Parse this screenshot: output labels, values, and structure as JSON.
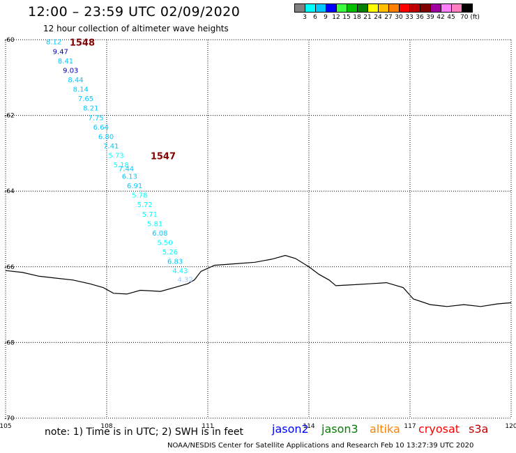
{
  "header": {
    "title": "12:00 – 23:59 UTC 02/09/2020",
    "subtitle": "12 hour collection of altimeter wave heights"
  },
  "legend": {
    "colors": [
      "#808080",
      "#00ffff",
      "#00c8ff",
      "#0000ff",
      "#40ff40",
      "#00c000",
      "#008000",
      "#ffff00",
      "#ffc000",
      "#ff8000",
      "#ff0000",
      "#c00000",
      "#800000",
      "#a000a0",
      "#ff80ff",
      "#ff80c0",
      "#000000"
    ],
    "labels": [
      "3",
      "6",
      "9",
      "12",
      "15",
      "18",
      "21",
      "24",
      "27",
      "30",
      "33",
      "36",
      "39",
      "42",
      "45",
      "70 (ft)"
    ]
  },
  "axes": {
    "x_ticks": [
      "105",
      "108",
      "111",
      "114",
      "117",
      "120"
    ],
    "y_ticks": [
      "-60",
      "-62",
      "-64",
      "-66",
      "-68",
      "-70"
    ]
  },
  "chart_data": {
    "type": "scatter",
    "x_range": [
      105,
      120
    ],
    "y_range": [
      -70,
      -60
    ],
    "track_labels": [
      {
        "label": "1548",
        "lon": 106.9,
        "lat": -60.05
      },
      {
        "label": "1547",
        "lon": 109.3,
        "lat": -63.05
      }
    ],
    "points": [
      {
        "lon": 106.2,
        "lat": -60.05,
        "value": "8.12",
        "color": "#00c8ff"
      },
      {
        "lon": 106.4,
        "lat": -60.3,
        "value": "9.47",
        "color": "#0000c0"
      },
      {
        "lon": 106.55,
        "lat": -60.55,
        "value": "8.41",
        "color": "#00c8ff"
      },
      {
        "lon": 106.7,
        "lat": -60.8,
        "value": "9.03",
        "color": "#0000c0"
      },
      {
        "lon": 106.85,
        "lat": -61.05,
        "value": "8.44",
        "color": "#00c8ff"
      },
      {
        "lon": 107.0,
        "lat": -61.3,
        "value": "8.14",
        "color": "#00c8ff"
      },
      {
        "lon": 107.15,
        "lat": -61.55,
        "value": "7.65",
        "color": "#00c8ff"
      },
      {
        "lon": 107.3,
        "lat": -61.8,
        "value": "8.21",
        "color": "#00c8ff"
      },
      {
        "lon": 107.45,
        "lat": -62.05,
        "value": "7.75",
        "color": "#00c8ff"
      },
      {
        "lon": 107.6,
        "lat": -62.3,
        "value": "6.64",
        "color": "#00c8ff"
      },
      {
        "lon": 107.75,
        "lat": -62.55,
        "value": "6.80",
        "color": "#00c8ff"
      },
      {
        "lon": 107.9,
        "lat": -62.8,
        "value": "7.41",
        "color": "#00c8ff"
      },
      {
        "lon": 108.05,
        "lat": -63.05,
        "value": "5.73",
        "color": "#00ffff"
      },
      {
        "lon": 108.2,
        "lat": -63.3,
        "value": "5.18",
        "color": "#00ffff"
      },
      {
        "lon": 108.35,
        "lat": -63.4,
        "value": "7.44",
        "color": "#00c8ff"
      },
      {
        "lon": 108.45,
        "lat": -63.6,
        "value": "6.13",
        "color": "#00c8ff"
      },
      {
        "lon": 108.6,
        "lat": -63.85,
        "value": "6.91",
        "color": "#00c8ff"
      },
      {
        "lon": 108.75,
        "lat": -64.1,
        "value": "5.78",
        "color": "#00ffff"
      },
      {
        "lon": 108.9,
        "lat": -64.35,
        "value": "5.72",
        "color": "#00ffff"
      },
      {
        "lon": 109.05,
        "lat": -64.6,
        "value": "5.71",
        "color": "#00ffff"
      },
      {
        "lon": 109.2,
        "lat": -64.85,
        "value": "5.81",
        "color": "#00ffff"
      },
      {
        "lon": 109.35,
        "lat": -65.1,
        "value": "6.08",
        "color": "#00c8ff"
      },
      {
        "lon": 109.5,
        "lat": -65.35,
        "value": "5.50",
        "color": "#00ffff"
      },
      {
        "lon": 109.65,
        "lat": -65.6,
        "value": "5.26",
        "color": "#00ffff"
      },
      {
        "lon": 109.8,
        "lat": -65.85,
        "value": "6.83",
        "color": "#00c8ff"
      },
      {
        "lon": 109.95,
        "lat": -66.1,
        "value": "4.43",
        "color": "#00ffff"
      },
      {
        "lon": 110.1,
        "lat": -66.33,
        "value": "4.32",
        "color": "#a0c8ff"
      }
    ],
    "coastline": [
      [
        105,
        -66.1
      ],
      [
        105.5,
        -66.15
      ],
      [
        106,
        -66.25
      ],
      [
        106.5,
        -66.3
      ],
      [
        107,
        -66.35
      ],
      [
        107.5,
        -66.45
      ],
      [
        107.9,
        -66.55
      ],
      [
        108.2,
        -66.7
      ],
      [
        108.6,
        -66.72
      ],
      [
        109.0,
        -66.62
      ],
      [
        109.6,
        -66.65
      ],
      [
        110.0,
        -66.55
      ],
      [
        110.4,
        -66.45
      ],
      [
        110.6,
        -66.35
      ],
      [
        110.8,
        -66.12
      ],
      [
        111.2,
        -65.96
      ],
      [
        111.8,
        -65.92
      ],
      [
        112.4,
        -65.88
      ],
      [
        112.9,
        -65.8
      ],
      [
        113.3,
        -65.7
      ],
      [
        113.6,
        -65.78
      ],
      [
        114.0,
        -66.0
      ],
      [
        114.3,
        -66.2
      ],
      [
        114.6,
        -66.35
      ],
      [
        114.8,
        -66.5
      ],
      [
        115.2,
        -66.48
      ],
      [
        115.8,
        -66.45
      ],
      [
        116.3,
        -66.42
      ],
      [
        116.8,
        -66.55
      ],
      [
        117.1,
        -66.85
      ],
      [
        117.6,
        -67.0
      ],
      [
        118.1,
        -67.05
      ],
      [
        118.6,
        -67.0
      ],
      [
        119.1,
        -67.05
      ],
      [
        119.6,
        -66.98
      ],
      [
        120,
        -66.95
      ]
    ]
  },
  "footer": {
    "note": "note: 1) Time is in UTC; 2) SWH is in feet",
    "satellites": [
      {
        "name": "jason2",
        "color": "#0000ff"
      },
      {
        "name": "jason3",
        "color": "#008000"
      },
      {
        "name": "altika",
        "color": "#ff8000"
      },
      {
        "name": "cryosat",
        "color": "#ff0000"
      },
      {
        "name": "s3a",
        "color": "#c00000"
      }
    ],
    "credit": "NOAA/NESDIS Center for Satellite Applications and Research    Feb 10 13:27:39 UTC 2020"
  }
}
